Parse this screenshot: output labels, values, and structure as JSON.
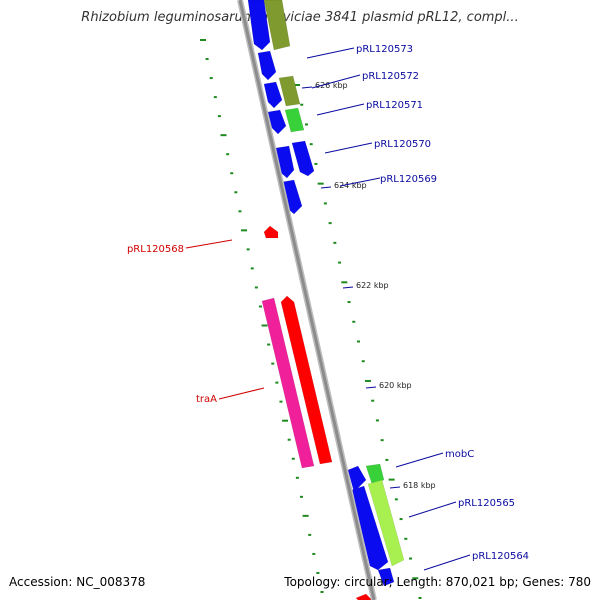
{
  "title": "Rhizobium leguminosarum bv. viciae 3841 plasmid pRL12, compl...",
  "footer": {
    "accession": "Accession: NC_008378",
    "stats": "Topology: circular; Length: 870,021 bp; Genes: 780"
  },
  "colors": {
    "backbone": "#8c8c8c",
    "tick_mark": "#1f8a1f",
    "cds_blue": "#0b0bf0",
    "olive": "#7f9a2e",
    "green": "#39d139",
    "light_green": "#a8f050",
    "magenta": "#f0209a",
    "red": "#ff0000",
    "blue_label": "#0a0aa0",
    "red_label": "#d00000"
  },
  "ticks": [
    "626 kbp",
    "624 kbp",
    "622 kbp",
    "620 kbp",
    "618 kbp"
  ],
  "gene_labels": [
    {
      "text": "pRL120573",
      "color": "blue"
    },
    {
      "text": "pRL120572",
      "color": "blue"
    },
    {
      "text": "pRL120571",
      "color": "blue"
    },
    {
      "text": "pRL120570",
      "color": "blue"
    },
    {
      "text": "pRL120569",
      "color": "blue"
    },
    {
      "text": "pRL120568",
      "color": "red"
    },
    {
      "text": "traA",
      "color": "red"
    },
    {
      "text": "mobC",
      "color": "blue"
    },
    {
      "text": "pRL120565",
      "color": "blue"
    },
    {
      "text": "pRL120564",
      "color": "blue"
    }
  ]
}
